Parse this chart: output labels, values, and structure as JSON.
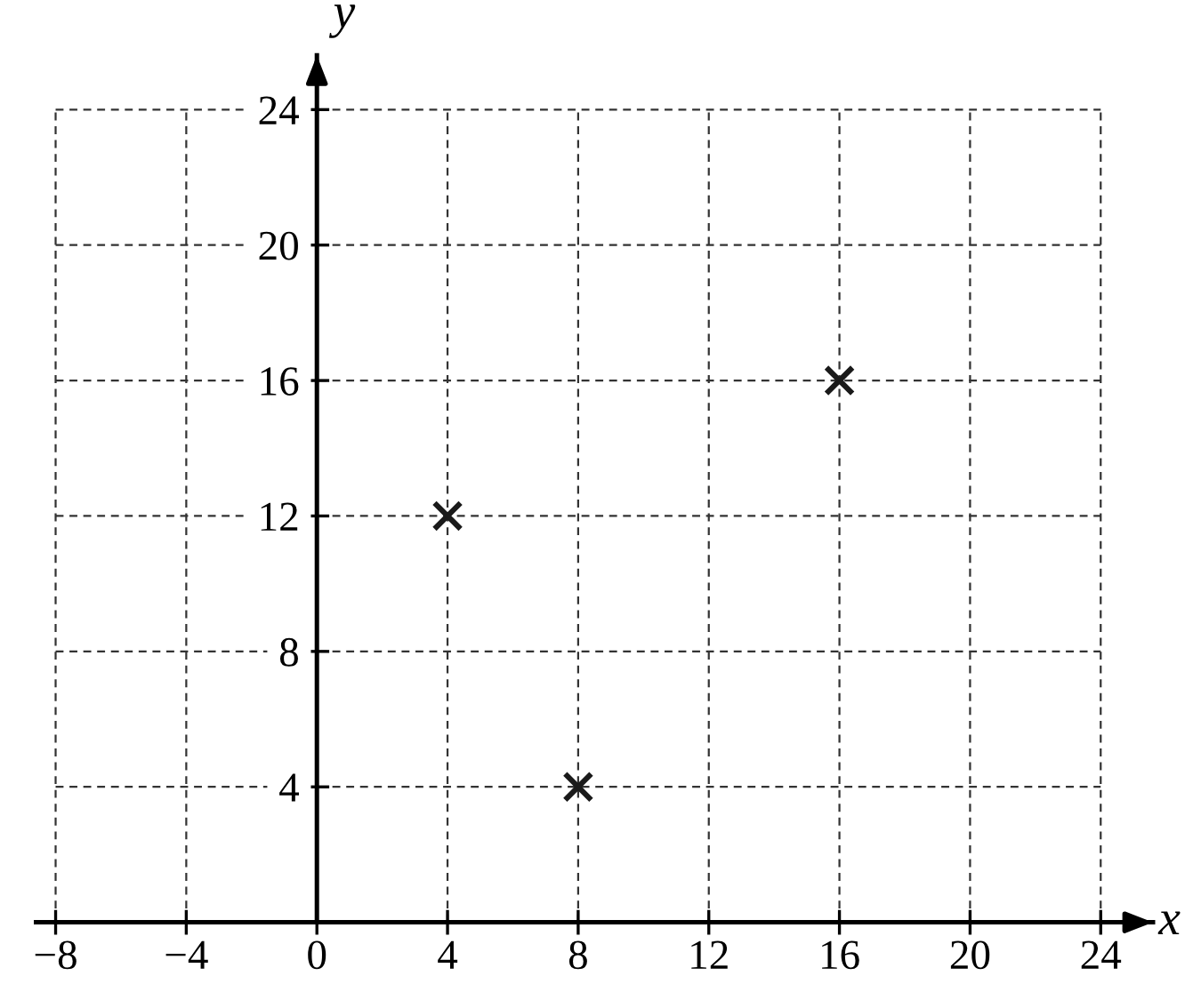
{
  "chart_data": {
    "type": "scatter",
    "xlabel": "x",
    "ylabel": "y",
    "x": [
      4,
      8,
      16
    ],
    "series": [
      {
        "color": "#1a1a1a",
        "values": [
          12,
          4,
          16
        ]
      }
    ],
    "marker": "cross",
    "xlim": [
      -8.6,
      25.6
    ],
    "ylim": [
      0,
      25.6
    ],
    "xticks": [
      {
        "value": -8,
        "label": "−8"
      },
      {
        "value": -4,
        "label": "−4"
      },
      0,
      4,
      8,
      12,
      16,
      20,
      24
    ],
    "yticks": [
      4,
      8,
      12,
      16,
      20,
      24
    ],
    "grid": true
  }
}
